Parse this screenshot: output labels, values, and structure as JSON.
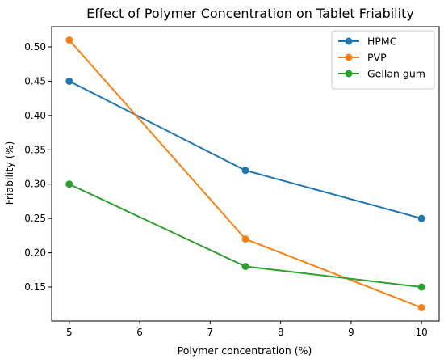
{
  "chart_data": {
    "type": "line",
    "title": "Effect of Polymer Concentration on Tablet Friability",
    "xlabel": "Polymer concentration (%)",
    "ylabel": "Friability (%)",
    "x": [
      5,
      7.5,
      10
    ],
    "xlim": [
      4.75,
      10.25
    ],
    "ylim": [
      0.1005,
      0.5295
    ],
    "xticks": [
      5,
      6,
      7,
      8,
      9,
      10
    ],
    "xtick_labels": [
      "5",
      "6",
      "7",
      "8",
      "9",
      "10"
    ],
    "yticks": [
      0.15,
      0.2,
      0.25,
      0.3,
      0.35,
      0.4,
      0.45,
      0.5
    ],
    "ytick_labels": [
      "0.15",
      "0.20",
      "0.25",
      "0.30",
      "0.35",
      "0.40",
      "0.45",
      "0.50"
    ],
    "grid": false,
    "legend_position": "top-right",
    "series": [
      {
        "name": "HPMC",
        "values": [
          0.45,
          0.32,
          0.25
        ],
        "color": "#1f77b4"
      },
      {
        "name": "PVP",
        "values": [
          0.51,
          0.22,
          0.12
        ],
        "color": "#ff7f0e"
      },
      {
        "name": "Gellan gum",
        "values": [
          0.3,
          0.18,
          0.15
        ],
        "color": "#2ca02c"
      }
    ]
  }
}
